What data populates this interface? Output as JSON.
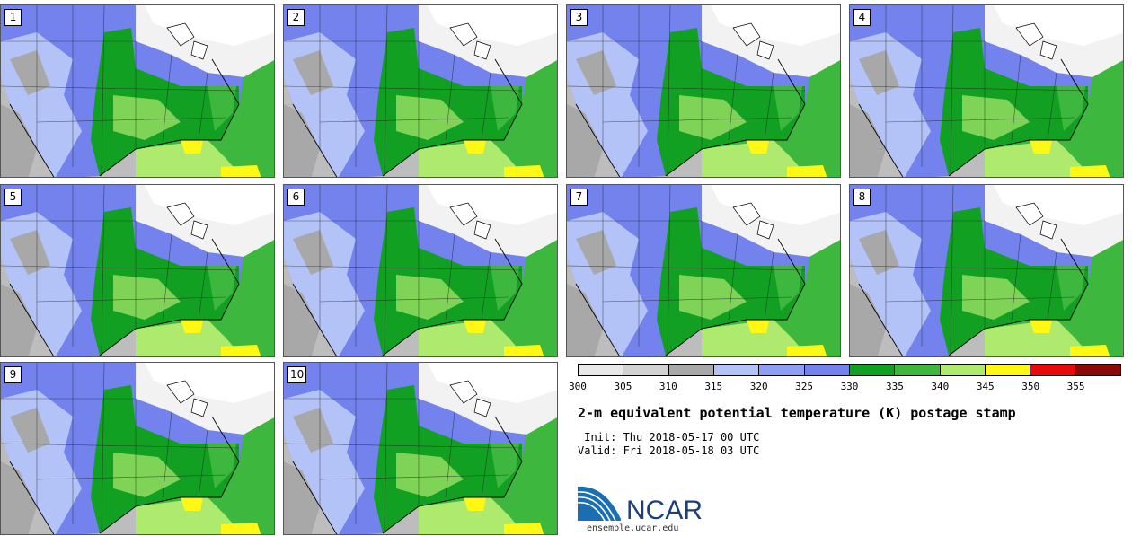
{
  "panels": [
    {
      "label": "1"
    },
    {
      "label": "2"
    },
    {
      "label": "3"
    },
    {
      "label": "4"
    },
    {
      "label": "5"
    },
    {
      "label": "6"
    },
    {
      "label": "7"
    },
    {
      "label": "8"
    },
    {
      "label": "9"
    },
    {
      "label": "10"
    }
  ],
  "colorbar": {
    "ticks": [
      "300",
      "305",
      "310",
      "315",
      "320",
      "325",
      "330",
      "335",
      "340",
      "345",
      "350",
      "355"
    ],
    "colors": [
      "#e8e8e8",
      "#d2d2d2",
      "#a8a8a8",
      "#b3c3f8",
      "#8e9ef5",
      "#7382ec",
      "#12a022",
      "#3db73d",
      "#aeea6e",
      "#fff714",
      "#e80a0a",
      "#8a0a0a"
    ]
  },
  "title": "2-m equivalent potential temperature (K) postage stamp",
  "init": " Init: Thu 2018-05-17 00 UTC",
  "valid": "Valid: Fri 2018-05-18 03 UTC",
  "logo": {
    "name": "ncar-logo",
    "text": "NCAR",
    "url": "ensemble.ucar.edu"
  }
}
